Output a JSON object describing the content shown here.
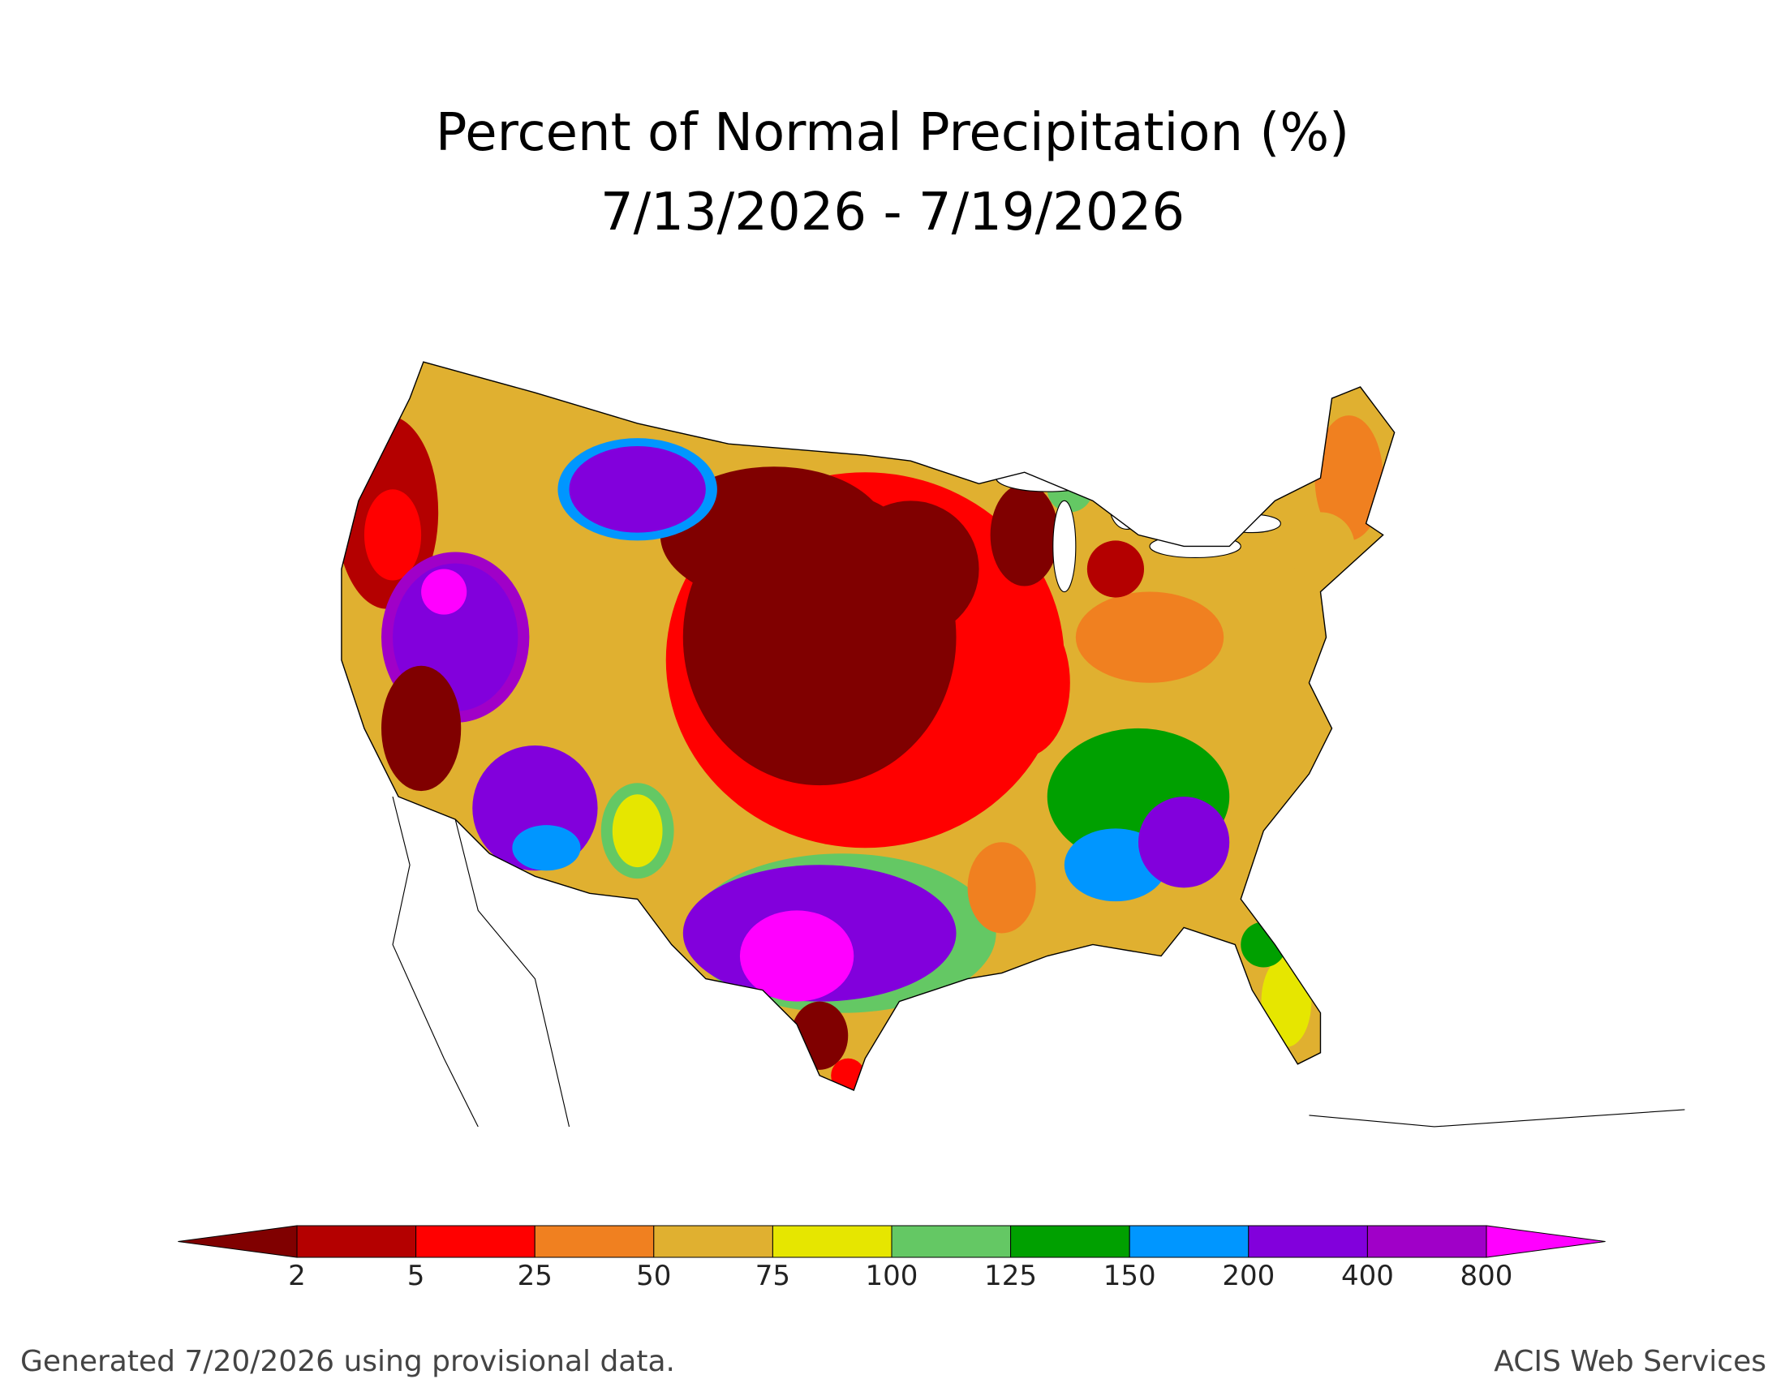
{
  "header": {
    "title": "Percent of Normal Precipitation (%)",
    "subtitle": "7/13/2026 - 7/19/2026"
  },
  "legend": {
    "colors": [
      "#800000",
      "#b40000",
      "#ff0000",
      "#f08020",
      "#e0b030",
      "#e6e600",
      "#64c864",
      "#00a000",
      "#0096ff",
      "#8200dc",
      "#a000c8",
      "#ff00ff"
    ],
    "ticks": [
      2,
      5,
      25,
      50,
      75,
      100,
      125,
      150,
      200,
      400,
      800
    ]
  },
  "footer": {
    "left": "Generated 7/20/2026 using provisional data.",
    "right": "ACIS Web Services"
  }
}
